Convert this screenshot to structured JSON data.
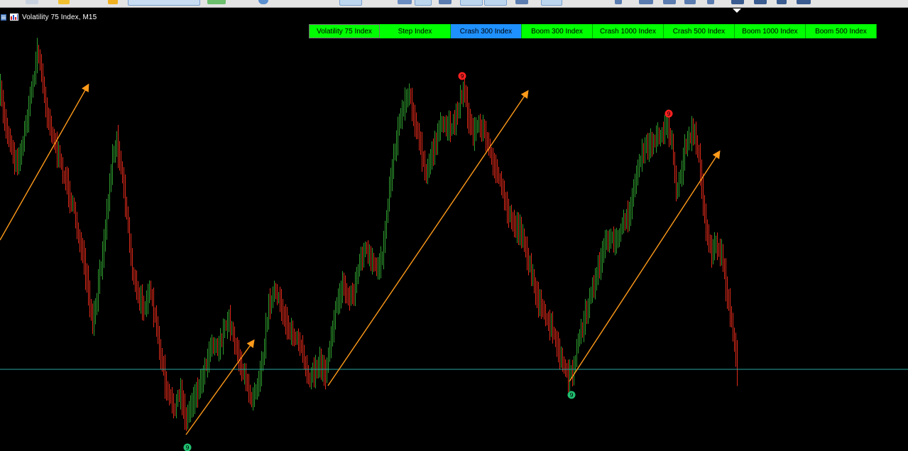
{
  "chart_header": {
    "title": "Volatility 75 Index, M15"
  },
  "symbol_buttons": [
    {
      "label": "Volatility 75 Index",
      "color": "#00ff00",
      "state": "selected"
    },
    {
      "label": "Step Index",
      "color": "#00ff00",
      "state": "normal"
    },
    {
      "label": "Crash 300 Index",
      "color": "#1e90ff",
      "state": "highlighted"
    },
    {
      "label": "Boom 300 Index",
      "color": "#00ff00",
      "state": "normal"
    },
    {
      "label": "Crash 1000 Index",
      "color": "#00ff00",
      "state": "normal"
    },
    {
      "label": "Crash 500 Index",
      "color": "#00ff00",
      "state": "normal"
    },
    {
      "label": "Boom 1000 Index",
      "color": "#00ff00",
      "state": "normal"
    },
    {
      "label": "Boom 500 Index",
      "color": "#00ff00",
      "state": "normal"
    }
  ],
  "markers": [
    {
      "label": "9",
      "type": "sell",
      "color": "#ff2020"
    },
    {
      "label": "9",
      "type": "sell",
      "color": "#ff2020"
    },
    {
      "label": "9",
      "type": "buy",
      "color": "#20c070"
    },
    {
      "label": "9",
      "type": "buy",
      "color": "#20c070"
    }
  ],
  "colors": {
    "background": "#000000",
    "bull": "#2e9a2e",
    "bear": "#e02a1a",
    "arrow": "#ff9a1a",
    "level_line": "#2aa7a0",
    "toolbar": "#e4e4e4"
  }
}
